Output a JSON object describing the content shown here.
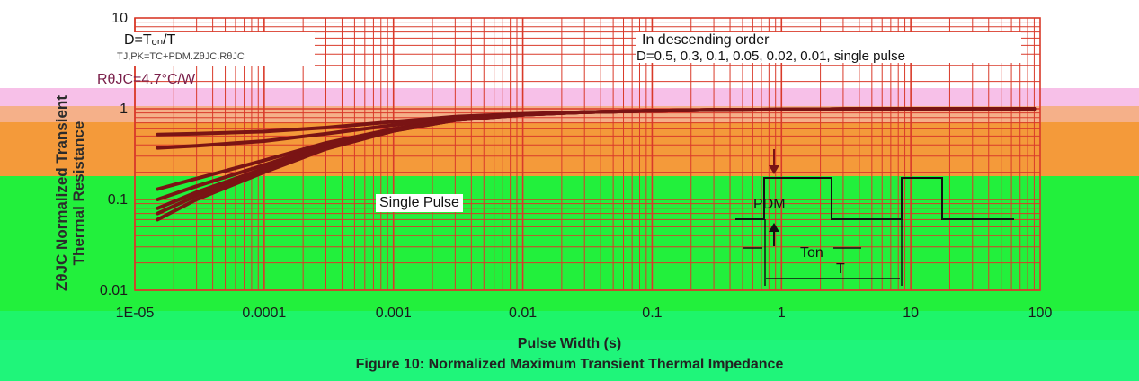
{
  "chart_data": {
    "type": "line",
    "x_scale": "log",
    "y_scale": "log",
    "xlim": [
      1e-05,
      100
    ],
    "ylim": [
      0.01,
      10
    ],
    "x_ticks": [
      "1E-05",
      "0.0001",
      "0.001",
      "0.01",
      "0.1",
      "1",
      "10",
      "100"
    ],
    "y_ticks": [
      "10",
      "1",
      "0.1",
      "0.01"
    ],
    "xlabel": "Pulse Width (s)",
    "ylabel": "ZθJC Normalized Transient Thermal Resistance",
    "caption": "Figure 10: Normalized Maximum Transient Thermal Impedance",
    "grid": true,
    "series": [
      {
        "x": [
          1.5e-05,
          3e-05,
          0.0001,
          0.0003,
          0.001,
          0.003,
          0.01,
          0.03,
          0.1,
          0.3,
          1,
          3,
          10,
          30,
          90
        ],
        "y": [
          0.52,
          0.53,
          0.56,
          0.62,
          0.72,
          0.82,
          0.88,
          0.92,
          0.95,
          0.97,
          0.98,
          0.99,
          1.0,
          1.0,
          1.0
        ]
      },
      {
        "x": [
          1.5e-05,
          3e-05,
          0.0001,
          0.0003,
          0.001,
          0.003,
          0.01,
          0.03,
          0.1,
          0.3,
          1,
          3,
          10,
          30,
          90
        ],
        "y": [
          0.37,
          0.39,
          0.44,
          0.53,
          0.66,
          0.79,
          0.87,
          0.92,
          0.95,
          0.97,
          0.98,
          0.99,
          1.0,
          1.0,
          1.0
        ]
      },
      {
        "x": [
          1.5e-05,
          3e-05,
          0.0001,
          0.0003,
          0.001,
          0.003,
          0.01,
          0.03,
          0.1,
          0.3,
          1,
          3,
          10,
          30,
          90
        ],
        "y": [
          0.13,
          0.17,
          0.27,
          0.42,
          0.6,
          0.76,
          0.86,
          0.92,
          0.95,
          0.97,
          0.98,
          0.99,
          1.0,
          1.0,
          1.0
        ]
      },
      {
        "x": [
          1.5e-05,
          3e-05,
          0.0001,
          0.0003,
          0.001,
          0.003,
          0.01,
          0.03,
          0.1,
          0.3,
          1,
          3,
          10,
          30,
          90
        ],
        "y": [
          0.1,
          0.14,
          0.24,
          0.4,
          0.59,
          0.76,
          0.86,
          0.92,
          0.95,
          0.97,
          0.98,
          0.99,
          1.0,
          1.0,
          1.0
        ]
      },
      {
        "x": [
          1.5e-05,
          3e-05,
          0.0001,
          0.0003,
          0.001,
          0.003,
          0.01,
          0.03,
          0.1,
          0.3,
          1,
          3,
          10,
          30,
          90
        ],
        "y": [
          0.08,
          0.12,
          0.22,
          0.38,
          0.58,
          0.75,
          0.86,
          0.92,
          0.95,
          0.97,
          0.98,
          0.99,
          1.0,
          1.0,
          1.0
        ]
      },
      {
        "x": [
          1.5e-05,
          3e-05,
          0.0001,
          0.0003,
          0.001,
          0.003,
          0.01,
          0.03,
          0.1,
          0.3,
          1,
          3,
          10,
          30,
          90
        ],
        "y": [
          0.07,
          0.11,
          0.21,
          0.37,
          0.57,
          0.75,
          0.86,
          0.92,
          0.95,
          0.97,
          0.98,
          0.99,
          1.0,
          1.0,
          1.0
        ]
      },
      {
        "x": [
          1.5e-05,
          3e-05,
          0.0001,
          0.0003,
          0.001,
          0.003,
          0.01,
          0.03,
          0.1,
          0.3,
          1,
          3,
          10,
          30,
          90
        ],
        "y": [
          0.06,
          0.1,
          0.2,
          0.36,
          0.57,
          0.75,
          0.86,
          0.92,
          0.95,
          0.97,
          0.98,
          0.99,
          1.0,
          1.0,
          1.0
        ]
      }
    ],
    "annotations": {
      "duty_formula": "D=Tₒₙ/T",
      "temp_formula": "TJ,PK=TC+PDM.ZθJC.RθJC",
      "resistance": "RθJC=4.7°C/W",
      "order_title": "In descending order",
      "order_values": "D=0.5, 0.3, 0.1, 0.05, 0.02, 0.01, single pulse",
      "single_pulse": "Single Pulse",
      "pdm": "PDM",
      "ton": "Ton",
      "t": "T"
    },
    "colors": {
      "curve": "#7a1414",
      "grid": "#d93a2a",
      "pulse": "#111111"
    }
  }
}
